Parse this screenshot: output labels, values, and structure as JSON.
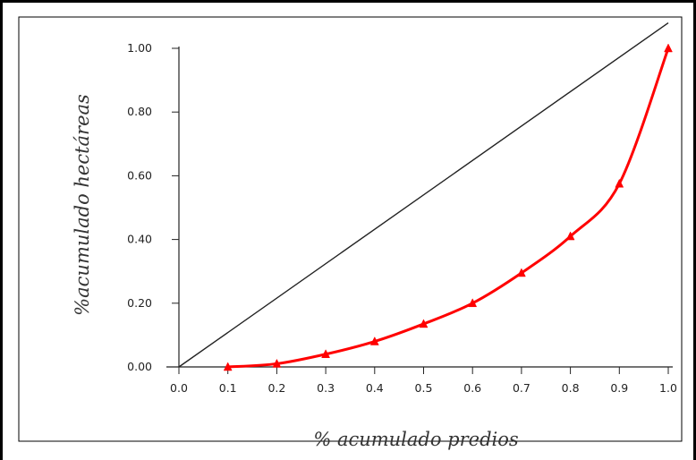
{
  "chart_data": {
    "type": "line",
    "title": "",
    "xlabel": "% acumulado predios",
    "ylabel": "%acumulado hectáreas",
    "xlim": [
      0.0,
      1.0
    ],
    "ylim": [
      0.0,
      1.0
    ],
    "x_ticks": [
      "0.0",
      "0.1",
      "0.2",
      "0.3",
      "0.4",
      "0.5",
      "0.6",
      "0.7",
      "0.8",
      "0.9",
      "1.0"
    ],
    "y_ticks": [
      "0.00",
      "0.20",
      "0.40",
      "0.60",
      "0.80",
      "1.00"
    ],
    "grid": false,
    "legend": "none",
    "series": [
      {
        "kind": "equality-line",
        "color": "#222222",
        "points": [
          [
            0.0,
            0.0
          ],
          [
            1.0,
            1.08
          ]
        ]
      },
      {
        "kind": "lorenz-curve",
        "color": "#ff0000",
        "marker": "triangle",
        "points": [
          [
            0.1,
            0.0
          ],
          [
            0.2,
            0.01
          ],
          [
            0.3,
            0.04
          ],
          [
            0.4,
            0.08
          ],
          [
            0.5,
            0.135
          ],
          [
            0.6,
            0.2
          ],
          [
            0.7,
            0.295
          ],
          [
            0.8,
            0.41
          ],
          [
            0.9,
            0.575
          ],
          [
            1.0,
            1.0
          ]
        ]
      }
    ]
  }
}
